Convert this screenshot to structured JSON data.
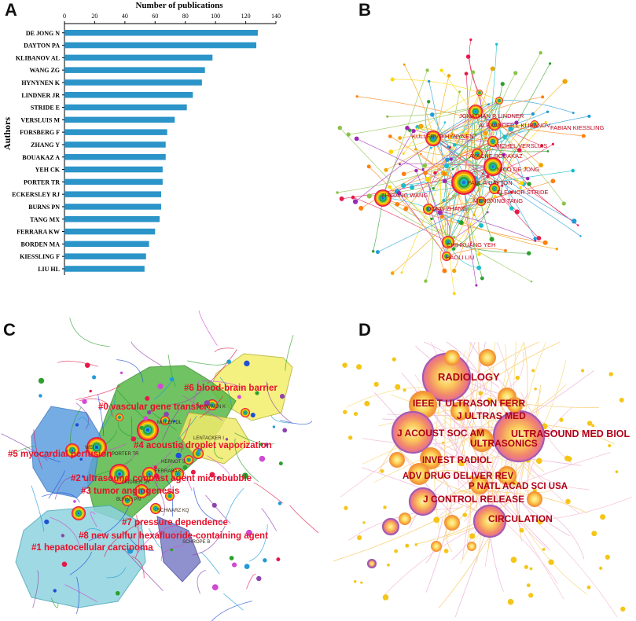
{
  "panel_labels": {
    "a": "A",
    "b": "B",
    "c": "C",
    "d": "D"
  },
  "chart_data": [
    {
      "type": "bar",
      "orientation": "horizontal",
      "title": "Number of publications",
      "xlabel": "Number of publications",
      "ylabel": "Authors",
      "xlim": [
        0,
        140
      ],
      "xticks": [
        0,
        20,
        40,
        60,
        80,
        100,
        120,
        140
      ],
      "bar_color": "#2b94c8",
      "categories": [
        "DE JONG N",
        "DAYTON PA",
        "KLIBANOV AL",
        "WANG ZG",
        "HYNYNEN K",
        "LINDNER JR",
        "STRIDE E",
        "VERSLUIS M",
        "FORSBERG F",
        "ZHANG Y",
        "BOUAKAZ A",
        "YEH CK",
        "PORTER TR",
        "ECKERSLEY RJ",
        "BURNS PN",
        "TANG MX",
        "FERRARA KW",
        "BORDEN MA",
        "KIESSLING F",
        "LIU HL"
      ],
      "values": [
        128,
        127,
        98,
        93,
        91,
        85,
        81,
        73,
        68,
        67,
        67,
        65,
        65,
        64,
        64,
        63,
        60,
        56,
        54,
        53
      ]
    },
    {
      "type": "network",
      "name": "author co-citation network",
      "label_color": "#c0001a",
      "nodes": [
        "JONATHAN R LINDNER",
        "ALEXANDER L KLIBANOV",
        "FABIAN KIESSLING",
        "KULLERVO HYNYNEN",
        "MICHEL VERSLUIS",
        "AYACHE BOUAKAZ",
        "NICO DE JONG",
        "PAUL A DAYTON",
        "ELEANOR STRIDE",
        "ZHIGANG WANG",
        "MENGXING TANG",
        "DONG ZHANG",
        "CHIHKUANG YEH",
        "HAOLI LIU"
      ]
    },
    {
      "type": "network-clusters",
      "name": "co-citation cluster map",
      "label_color": "#e8102a",
      "clusters": [
        "#6 blood-brain barrier",
        "#0 vascular gene transfer",
        "#4 acoustic droplet vaporization",
        "#5 myocardial perfusion",
        "#2 ultrasound contrast agent microbubble",
        "#3 tumor angiogenesis",
        "#7 pressure dependence",
        "#8 new sulfur hexafluoride-containing agent",
        "#1 hepatocellular carcinoma"
      ],
      "node_labels": [
        "HYNYNEN K",
        "MILLER DL",
        "LENTACKER I",
        "WEI K",
        "PORTER TR",
        "HERNOT S",
        "FERRARA K",
        "LINDNER JR",
        "BURNS PN",
        "SCHWARZ KQ",
        "SCHROPE B"
      ]
    },
    {
      "type": "network",
      "name": "journal co-citation network",
      "label_color": "#b0001a",
      "nodes": [
        "RADIOLOGY",
        "IEEE T ULTRASON FERR",
        "J ULTRAS MED",
        "J ACOUST SOC AM",
        "ULTRASOUND MED BIOL",
        "ULTRASONICS",
        "INVEST RADIOL",
        "ADV DRUG DELIVER REV",
        "P NATL ACAD SCI USA",
        "J CONTROL RELEASE",
        "CIRCULATION"
      ]
    }
  ]
}
